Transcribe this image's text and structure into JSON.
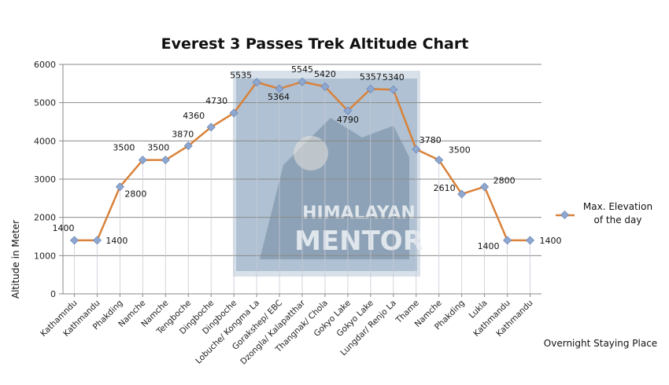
{
  "chart_data": {
    "type": "line",
    "title": "Everest 3 Passes Trek Altitude Chart",
    "xlabel": "Overnight Staying Place",
    "ylabel": "Altitude in Meter",
    "ylim": [
      0,
      6000
    ],
    "yticks": [
      "0",
      "1000",
      "2000",
      "3000",
      "4000",
      "5000",
      "6000"
    ],
    "grid": true,
    "legend_position": "right",
    "categories": [
      "Kathamndu",
      "Kathmandu",
      "Phakding",
      "Namche",
      "Namche",
      "Tengboche",
      "Dingboche",
      "Dingboche",
      "Lobuche/ Kongma La",
      "Gorakshep/ EBC",
      "Dzongla/ Kalapatthar",
      "Thangnak/ Chola",
      "Gokyo Lake",
      "Gokyo Lake",
      "Lungdar/ Renjo La",
      "Thame",
      "Namche",
      "Phakding",
      "Lukla",
      "Kathmandu",
      "Kathmandu"
    ],
    "series": [
      {
        "name": "Max. Elevation of the day",
        "values": [
          1400,
          1400,
          2800,
          3500,
          3500,
          3870,
          4360,
          4730,
          5535,
          5364,
          5545,
          5420,
          4790,
          5357,
          5340,
          3780,
          3500,
          2610,
          2800,
          1400,
          1400
        ],
        "labels": [
          "1400",
          "1400",
          "2800",
          "3500",
          "3500",
          "3870",
          "4360",
          "4730",
          "5535",
          "5364",
          "5545",
          "5420",
          "4790",
          "5357",
          "5340",
          "3780",
          "3500",
          "2610",
          "2800",
          "1400",
          "1400"
        ],
        "line_color": "#d9823b",
        "marker_color": "#8fa8d0"
      }
    ],
    "legend": {
      "line1": "Max. Elevation",
      "line2": "of the day"
    },
    "watermark": {
      "line1": "HIMALAYAN",
      "line2": "MENTOR"
    }
  }
}
